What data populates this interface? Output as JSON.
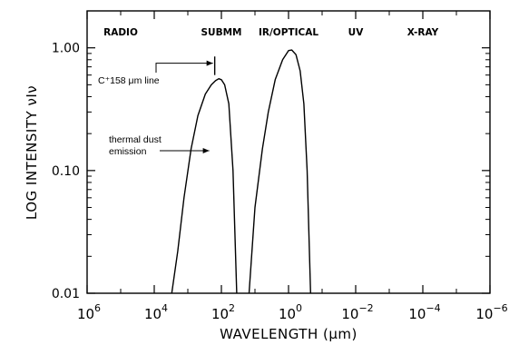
{
  "chart_data": {
    "type": "line",
    "title": "",
    "xlabel": "WAVELENGTH (μm)",
    "ylabel": "LOG INTENSITY νIν",
    "x_scale": "log",
    "x_reversed": true,
    "y_scale": "log",
    "xlim": [
      1000000,
      1e-06
    ],
    "ylim": [
      0.01,
      2
    ],
    "x_ticks": [
      {
        "value": 1000000,
        "base": "10",
        "exp": "6"
      },
      {
        "value": 10000,
        "base": "10",
        "exp": "4"
      },
      {
        "value": 100,
        "base": "10",
        "exp": "2"
      },
      {
        "value": 1,
        "base": "10",
        "exp": "0"
      },
      {
        "value": 0.01,
        "base": "10",
        "exp": "−2"
      },
      {
        "value": 0.0001,
        "base": "10",
        "exp": "−4"
      },
      {
        "value": 1e-06,
        "base": "10",
        "exp": "−6"
      }
    ],
    "y_ticks": [
      {
        "value": 1,
        "label": "1.00"
      },
      {
        "value": 0.1,
        "label": "0.10"
      },
      {
        "value": 0.01,
        "label": "0.01"
      }
    ],
    "bands": [
      {
        "label": "RADIO",
        "x": 100000
      },
      {
        "label": "SUBMM",
        "x": 100
      },
      {
        "label": "IR/OPTICAL",
        "x": 1
      },
      {
        "label": "UV",
        "x": 0.01
      },
      {
        "label": "X-RAY",
        "x": 0.0001
      }
    ],
    "series": [
      {
        "points": [
          [
            3000,
            0.01
          ],
          [
            2000,
            0.022
          ],
          [
            1300,
            0.06
          ],
          [
            800,
            0.15
          ],
          [
            500,
            0.28
          ],
          [
            300,
            0.42
          ],
          [
            200,
            0.5
          ],
          [
            150,
            0.54
          ],
          [
            120,
            0.56
          ],
          [
            100,
            0.55
          ],
          [
            80,
            0.5
          ],
          [
            60,
            0.35
          ],
          [
            45,
            0.1
          ],
          [
            35,
            0.01
          ]
        ]
      },
      {
        "points": [
          [
            15,
            0.01
          ],
          [
            10,
            0.05
          ],
          [
            6,
            0.15
          ],
          [
            4,
            0.3
          ],
          [
            2.5,
            0.55
          ],
          [
            1.5,
            0.8
          ],
          [
            1.0,
            0.95
          ],
          [
            0.8,
            0.96
          ],
          [
            0.6,
            0.88
          ],
          [
            0.45,
            0.65
          ],
          [
            0.35,
            0.35
          ],
          [
            0.28,
            0.1
          ],
          [
            0.22,
            0.01
          ]
        ]
      }
    ],
    "annotations": [
      {
        "lines": [
          "C⁺158 μm line"
        ],
        "target": {
          "x": 158,
          "y": 0.6
        }
      },
      {
        "lines": [
          "thermal dust",
          "emission"
        ],
        "target": {
          "x": 200,
          "y": 0.16
        }
      }
    ],
    "legend": "none",
    "grid": false
  }
}
